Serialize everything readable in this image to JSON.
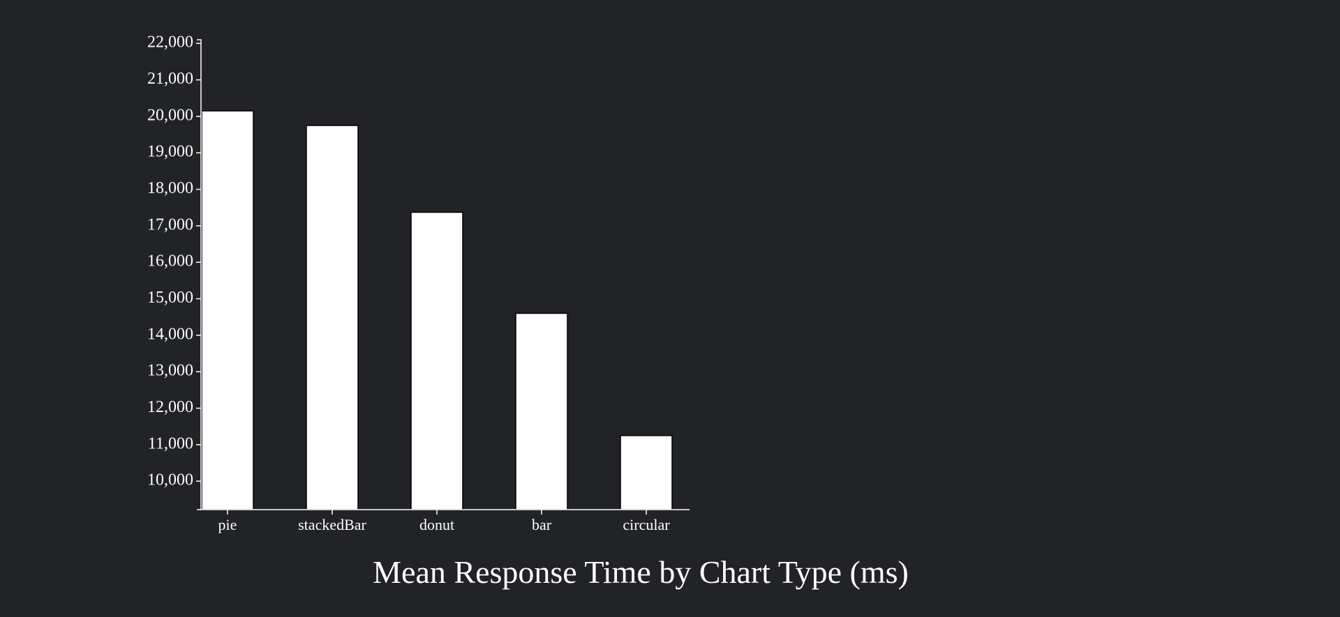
{
  "colors": {
    "background": "#222327",
    "bar_fill": "#ffffff",
    "bar_stroke": "#000000",
    "axis": "#ffffff",
    "text": "#ffffff"
  },
  "chart_data": {
    "type": "bar",
    "title": "Mean Response Time by Chart Type (ms)",
    "xlabel": "",
    "ylabel": "",
    "categories": [
      "pie",
      "stackedBar",
      "donut",
      "bar",
      "circular"
    ],
    "values": [
      20150,
      19750,
      17370,
      14600,
      11250
    ],
    "ylim": [
      9220,
      22100
    ],
    "yticks": [
      10000,
      11000,
      12000,
      13000,
      14000,
      15000,
      16000,
      17000,
      18000,
      19000,
      20000,
      21000,
      22000
    ],
    "ytick_labels": [
      "10,000",
      "11,000",
      "12,000",
      "13,000",
      "14,000",
      "15,000",
      "16,000",
      "17,000",
      "18,000",
      "19,000",
      "20,000",
      "21,000",
      "22,000"
    ],
    "grid": false,
    "legend": "none"
  }
}
